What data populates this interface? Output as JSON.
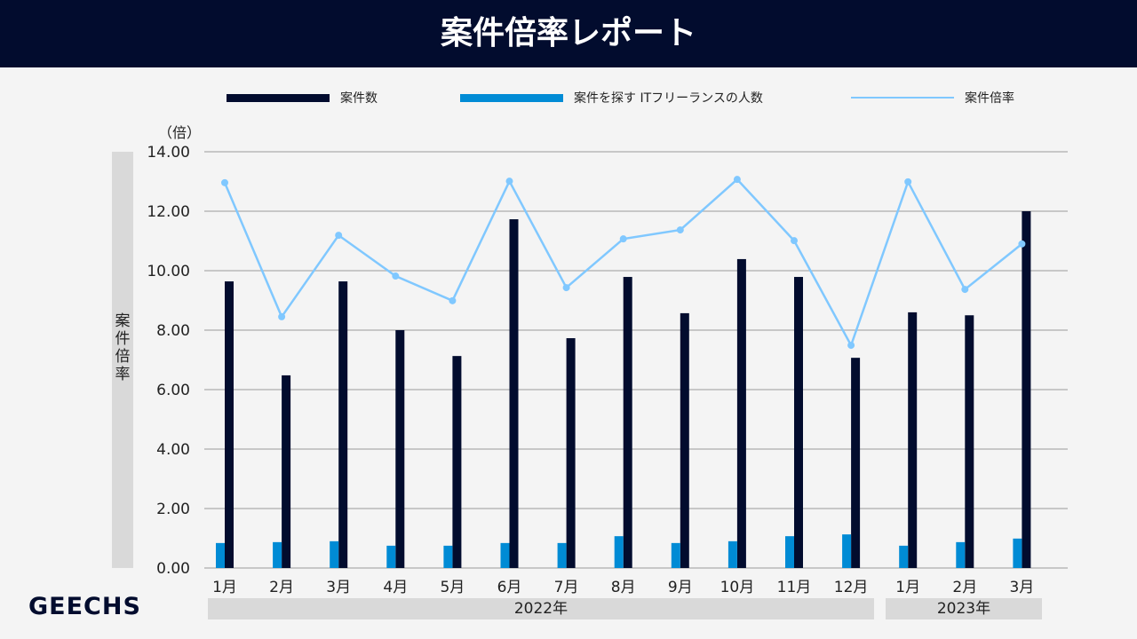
{
  "header": {
    "title": "案件倍率レポート"
  },
  "logo": "GEECHS",
  "colors": {
    "header_bg": "#020c2e",
    "jobs": "#020c2e",
    "freelancers": "#008bd5",
    "ratio": "#80c8ff"
  },
  "chart_data": {
    "type": "bar+line",
    "title": "案件倍率レポート",
    "ylabel": "案件倍率",
    "yunit": "（倍）",
    "ylim": [
      0,
      14
    ],
    "yticks": [
      "0.00",
      "2.00",
      "4.00",
      "6.00",
      "8.00",
      "10.00",
      "12.00",
      "14.00"
    ],
    "grid": true,
    "legend_position": "top",
    "categories": [
      "1月",
      "2月",
      "3月",
      "4月",
      "5月",
      "6月",
      "7月",
      "8月",
      "9月",
      "10月",
      "11月",
      "12月",
      "1月",
      "2月",
      "3月"
    ],
    "year_groups": [
      {
        "label": "2022年",
        "count": 12
      },
      {
        "label": "2023年",
        "count": 3
      }
    ],
    "series": [
      {
        "name": "案件数",
        "type": "bar",
        "values": [
          9.64,
          6.48,
          9.64,
          8.0,
          7.13,
          11.73,
          7.73,
          9.79,
          8.57,
          10.39,
          9.79,
          7.07,
          8.6,
          8.5,
          12.0
        ]
      },
      {
        "name": "案件を探す ITフリーランスの人数",
        "type": "bar",
        "values": [
          0.84,
          0.87,
          0.9,
          0.75,
          0.75,
          0.84,
          0.84,
          1.07,
          0.84,
          0.9,
          1.07,
          1.13,
          0.75,
          0.87,
          0.99
        ]
      },
      {
        "name": "案件倍率",
        "type": "line",
        "values": [
          12.96,
          8.45,
          11.19,
          9.82,
          8.99,
          13.01,
          9.43,
          11.07,
          11.37,
          13.07,
          11.01,
          7.49,
          12.99,
          9.37,
          10.9
        ]
      }
    ]
  }
}
